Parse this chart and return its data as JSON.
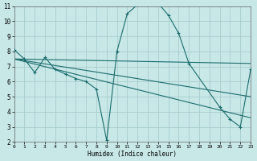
{
  "bg_color": "#c8e8e8",
  "grid_color": "#a8cccc",
  "line_color": "#1a6b6b",
  "xlim": [
    0,
    23
  ],
  "ylim": [
    2,
    11
  ],
  "xticks": [
    0,
    1,
    2,
    3,
    4,
    5,
    6,
    7,
    8,
    9,
    10,
    11,
    12,
    13,
    14,
    15,
    16,
    17,
    18,
    19,
    20,
    21,
    22,
    23
  ],
  "yticks": [
    2,
    3,
    4,
    5,
    6,
    7,
    8,
    9,
    10,
    11
  ],
  "curve_x": [
    0,
    1,
    2,
    3,
    4,
    5,
    6,
    7,
    8,
    9,
    10,
    11,
    12,
    13,
    14,
    15,
    16,
    17,
    20,
    21,
    22,
    23
  ],
  "curve_y": [
    8.1,
    7.5,
    6.6,
    7.6,
    6.8,
    6.5,
    6.2,
    6.0,
    5.5,
    2.1,
    8.0,
    10.5,
    11.1,
    11.1,
    11.2,
    10.4,
    9.2,
    7.2,
    4.3,
    3.5,
    3.0,
    6.8
  ],
  "trend1_x": [
    0,
    23
  ],
  "trend1_y": [
    7.5,
    7.2
  ],
  "trend2_x": [
    0,
    23
  ],
  "trend2_y": [
    7.5,
    5.0
  ],
  "trend3_x": [
    0,
    23
  ],
  "trend3_y": [
    7.5,
    3.6
  ],
  "xlabel": "Humidex (Indice chaleur)"
}
